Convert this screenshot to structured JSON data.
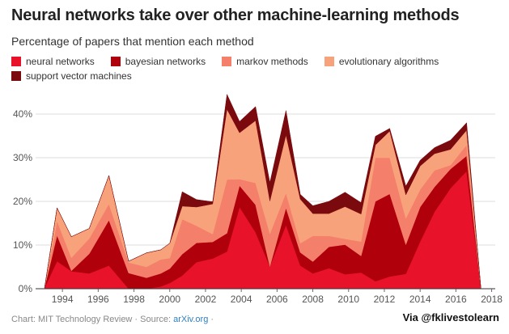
{
  "header": {
    "title": "Neural networks take over other machine-learning methods",
    "subtitle": "Percentage of papers that mention each method"
  },
  "footer": {
    "source_prefix": "Chart: MIT Technology Review · Source: ",
    "source_link": "arXiv.org",
    "source_suffix": " ·",
    "credit": "Via @fklivestolearn"
  },
  "chart_data": {
    "type": "area",
    "stacked": true,
    "title": "Neural networks take over other machine-learning methods",
    "subtitle": "Percentage of papers that mention each method",
    "xlabel": "",
    "ylabel": "",
    "ylim": [
      0,
      45
    ],
    "yticks": [
      0,
      10,
      20,
      30,
      40
    ],
    "ytick_labels": [
      "0%",
      "10%",
      "20%",
      "30%",
      "40%"
    ],
    "xlim": [
      1992.5,
      2018.2
    ],
    "xticks": [
      1994,
      1996,
      1998,
      2000,
      2002,
      2004,
      2006,
      2008,
      2010,
      2012,
      2014,
      2016,
      2018
    ],
    "grid": "horizontal",
    "legend_position": "top",
    "x": [
      1993,
      1993.7,
      1994.5,
      1995.5,
      1996.6,
      1997.7,
      1998.7,
      1999.5,
      2000,
      2000.7,
      2001.5,
      2002.4,
      2003.2,
      2003.9,
      2004.8,
      2005.6,
      2006.5,
      2007.3,
      2008,
      2008.9,
      2009.8,
      2010.7,
      2011.5,
      2012.3,
      2013.2,
      2014,
      2014.8,
      2015.7,
      2016.6,
      2017.4,
      2018.2
    ],
    "series": [
      {
        "name": "neural networks",
        "color": "#e8122a",
        "values": [
          0.2,
          6.3,
          4.0,
          3.5,
          5.3,
          0.0,
          0.0,
          0.5,
          1.3,
          3.0,
          6.1,
          6.9,
          8.5,
          18.7,
          12.9,
          5.1,
          14.6,
          5.3,
          3.5,
          4.7,
          3.3,
          3.7,
          1.7,
          2.8,
          3.4,
          10.8,
          17.6,
          23.0,
          26.9,
          0.0,
          0.0
        ]
      },
      {
        "name": "bayesian networks",
        "color": "#b0000c",
        "values": [
          0.0,
          5.9,
          0.1,
          4.5,
          10.4,
          3.6,
          2.5,
          3.0,
          3.3,
          4.9,
          4.4,
          3.8,
          4.2,
          4.9,
          6.3,
          0.0,
          3.9,
          3.0,
          2.7,
          4.9,
          6.8,
          3.8,
          18.3,
          18.9,
          6.7,
          7.9,
          5.7,
          4.4,
          3.5,
          0.0,
          0.0
        ]
      },
      {
        "name": "markov methods",
        "color": "#f47f6a",
        "values": [
          0.0,
          3.3,
          3.0,
          3.5,
          3.7,
          2.4,
          2.5,
          3.2,
          2.4,
          8.0,
          3.9,
          1.8,
          12.3,
          1.5,
          5.0,
          7.5,
          3.4,
          2.1,
          5.9,
          2.5,
          1.3,
          3.3,
          10.0,
          8.3,
          6.0,
          4.0,
          3.8,
          0.9,
          2.5,
          0.0,
          0.0
        ]
      },
      {
        "name": "evolutionary algorithms",
        "color": "#f8a27b",
        "values": [
          0.0,
          3.0,
          4.8,
          2.3,
          6.5,
          0.3,
          3.2,
          2.2,
          3.4,
          3.0,
          4.3,
          6.9,
          16.1,
          10.6,
          14.3,
          7.5,
          13.3,
          10.1,
          5.1,
          5.1,
          7.4,
          6.3,
          2.9,
          6.1,
          5.4,
          5.4,
          3.8,
          3.6,
          3.4,
          0.0,
          0.0
        ]
      },
      {
        "name": "support vector machines",
        "color": "#7a0a0e",
        "values": [
          0.0,
          0.0,
          0.0,
          0.0,
          0.0,
          0.0,
          0.0,
          0.0,
          0.0,
          3.3,
          1.7,
          0.5,
          3.4,
          2.6,
          3.2,
          4.2,
          5.6,
          1.1,
          1.8,
          2.8,
          3.3,
          2.6,
          2.0,
          0.6,
          2.0,
          1.3,
          1.4,
          2.1,
          1.7,
          0.0,
          0.0
        ]
      }
    ]
  }
}
